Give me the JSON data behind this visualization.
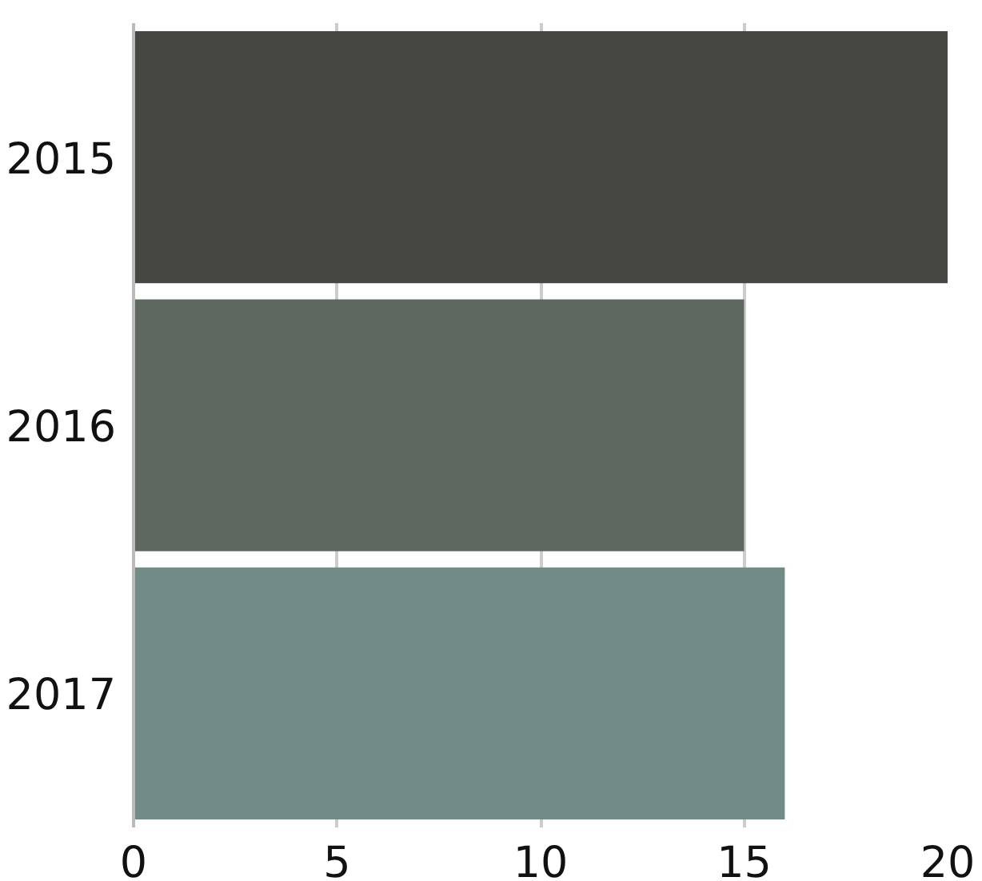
{
  "chart_data": {
    "type": "bar",
    "orientation": "horizontal",
    "categories": [
      "2015",
      "2016",
      "2017"
    ],
    "values": [
      20,
      15,
      16
    ],
    "colors": [
      "#464742",
      "#5e685e",
      "#728b86"
    ],
    "xlim": [
      0,
      20
    ],
    "xticks": [
      0,
      5,
      10,
      15,
      20
    ],
    "grid": "x"
  }
}
